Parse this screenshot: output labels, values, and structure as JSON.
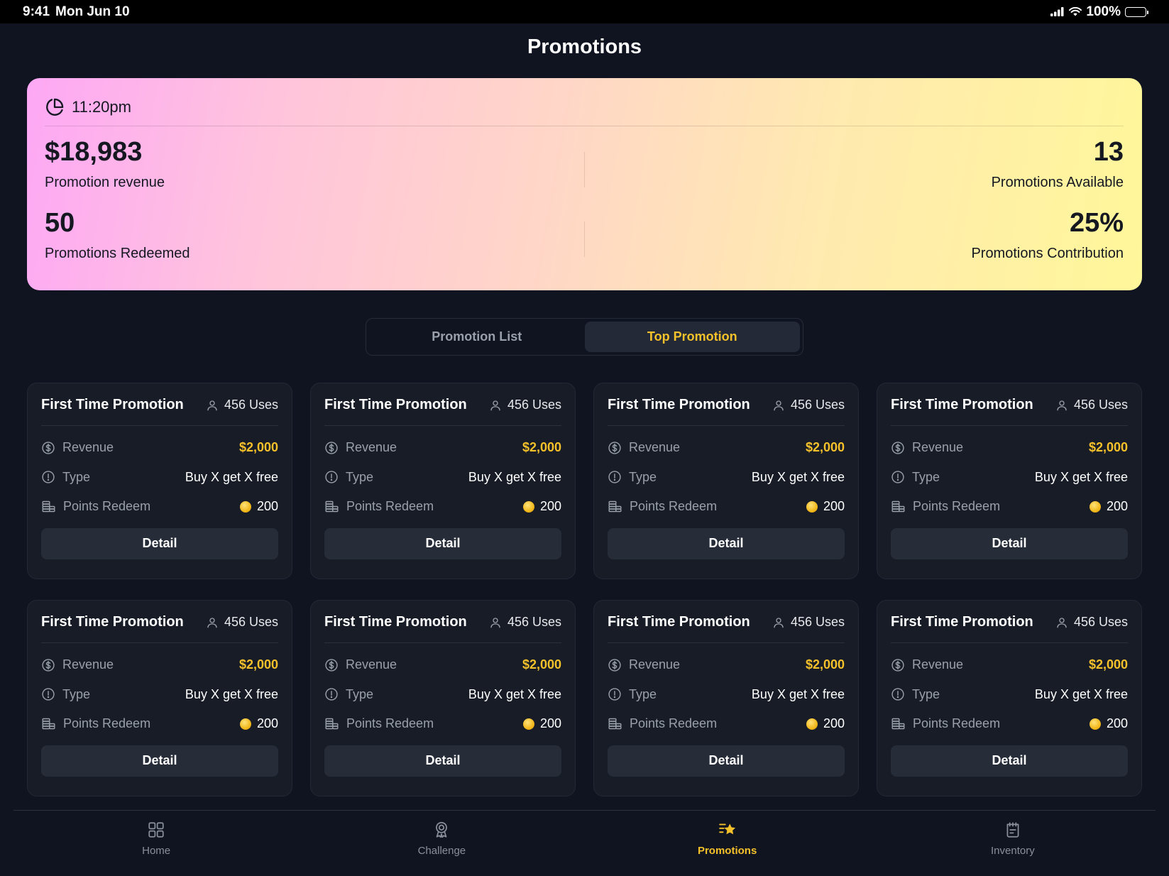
{
  "status_bar": {
    "time": "9:41",
    "date": "Mon Jun 10",
    "battery": "100%"
  },
  "page": {
    "title": "Promotions"
  },
  "summary": {
    "time": "11:20pm",
    "revenue_value": "$18,983",
    "revenue_label": "Promotion revenue",
    "available_value": "13",
    "available_label": "Promotions Available",
    "redeemed_value": "50",
    "redeemed_label": "Promotions Redeemed",
    "contribution_value": "25%",
    "contribution_label": "Promotions Contribution"
  },
  "tabs": [
    {
      "label": "Promotion List",
      "active": false
    },
    {
      "label": "Top Promotion",
      "active": true
    }
  ],
  "cards": [
    {
      "title": "First Time Promotion",
      "uses": "456 Uses",
      "revenue_label": "Revenue",
      "revenue": "$2,000",
      "type_label": "Type",
      "type": "Buy X get X free",
      "points_label": "Points Redeem",
      "points": "200",
      "button": "Detail"
    },
    {
      "title": "First Time Promotion",
      "uses": "456 Uses",
      "revenue_label": "Revenue",
      "revenue": "$2,000",
      "type_label": "Type",
      "type": "Buy X get X free",
      "points_label": "Points Redeem",
      "points": "200",
      "button": "Detail"
    },
    {
      "title": "First Time Promotion",
      "uses": "456 Uses",
      "revenue_label": "Revenue",
      "revenue": "$2,000",
      "type_label": "Type",
      "type": "Buy X get X free",
      "points_label": "Points Redeem",
      "points": "200",
      "button": "Detail"
    },
    {
      "title": "First Time Promotion",
      "uses": "456 Uses",
      "revenue_label": "Revenue",
      "revenue": "$2,000",
      "type_label": "Type",
      "type": "Buy X get X free",
      "points_label": "Points Redeem",
      "points": "200",
      "button": "Detail"
    },
    {
      "title": "First Time Promotion",
      "uses": "456 Uses",
      "revenue_label": "Revenue",
      "revenue": "$2,000",
      "type_label": "Type",
      "type": "Buy X get X free",
      "points_label": "Points Redeem",
      "points": "200",
      "button": "Detail"
    },
    {
      "title": "First Time Promotion",
      "uses": "456 Uses",
      "revenue_label": "Revenue",
      "revenue": "$2,000",
      "type_label": "Type",
      "type": "Buy X get X free",
      "points_label": "Points Redeem",
      "points": "200",
      "button": "Detail"
    },
    {
      "title": "First Time Promotion",
      "uses": "456 Uses",
      "revenue_label": "Revenue",
      "revenue": "$2,000",
      "type_label": "Type",
      "type": "Buy X get X free",
      "points_label": "Points Redeem",
      "points": "200",
      "button": "Detail"
    },
    {
      "title": "First Time Promotion",
      "uses": "456 Uses",
      "revenue_label": "Revenue",
      "revenue": "$2,000",
      "type_label": "Type",
      "type": "Buy X get X free",
      "points_label": "Points Redeem",
      "points": "200",
      "button": "Detail"
    }
  ],
  "nav": [
    {
      "label": "Home",
      "icon": "grid-icon",
      "active": false
    },
    {
      "label": "Challenge",
      "icon": "award-icon",
      "active": false
    },
    {
      "label": "Promotions",
      "icon": "star-list-icon",
      "active": true
    },
    {
      "label": "Inventory",
      "icon": "clipboard-icon",
      "active": false
    }
  ],
  "colors": {
    "accent": "#f5c12b",
    "background": "#0f1420",
    "card": "#171c27"
  }
}
